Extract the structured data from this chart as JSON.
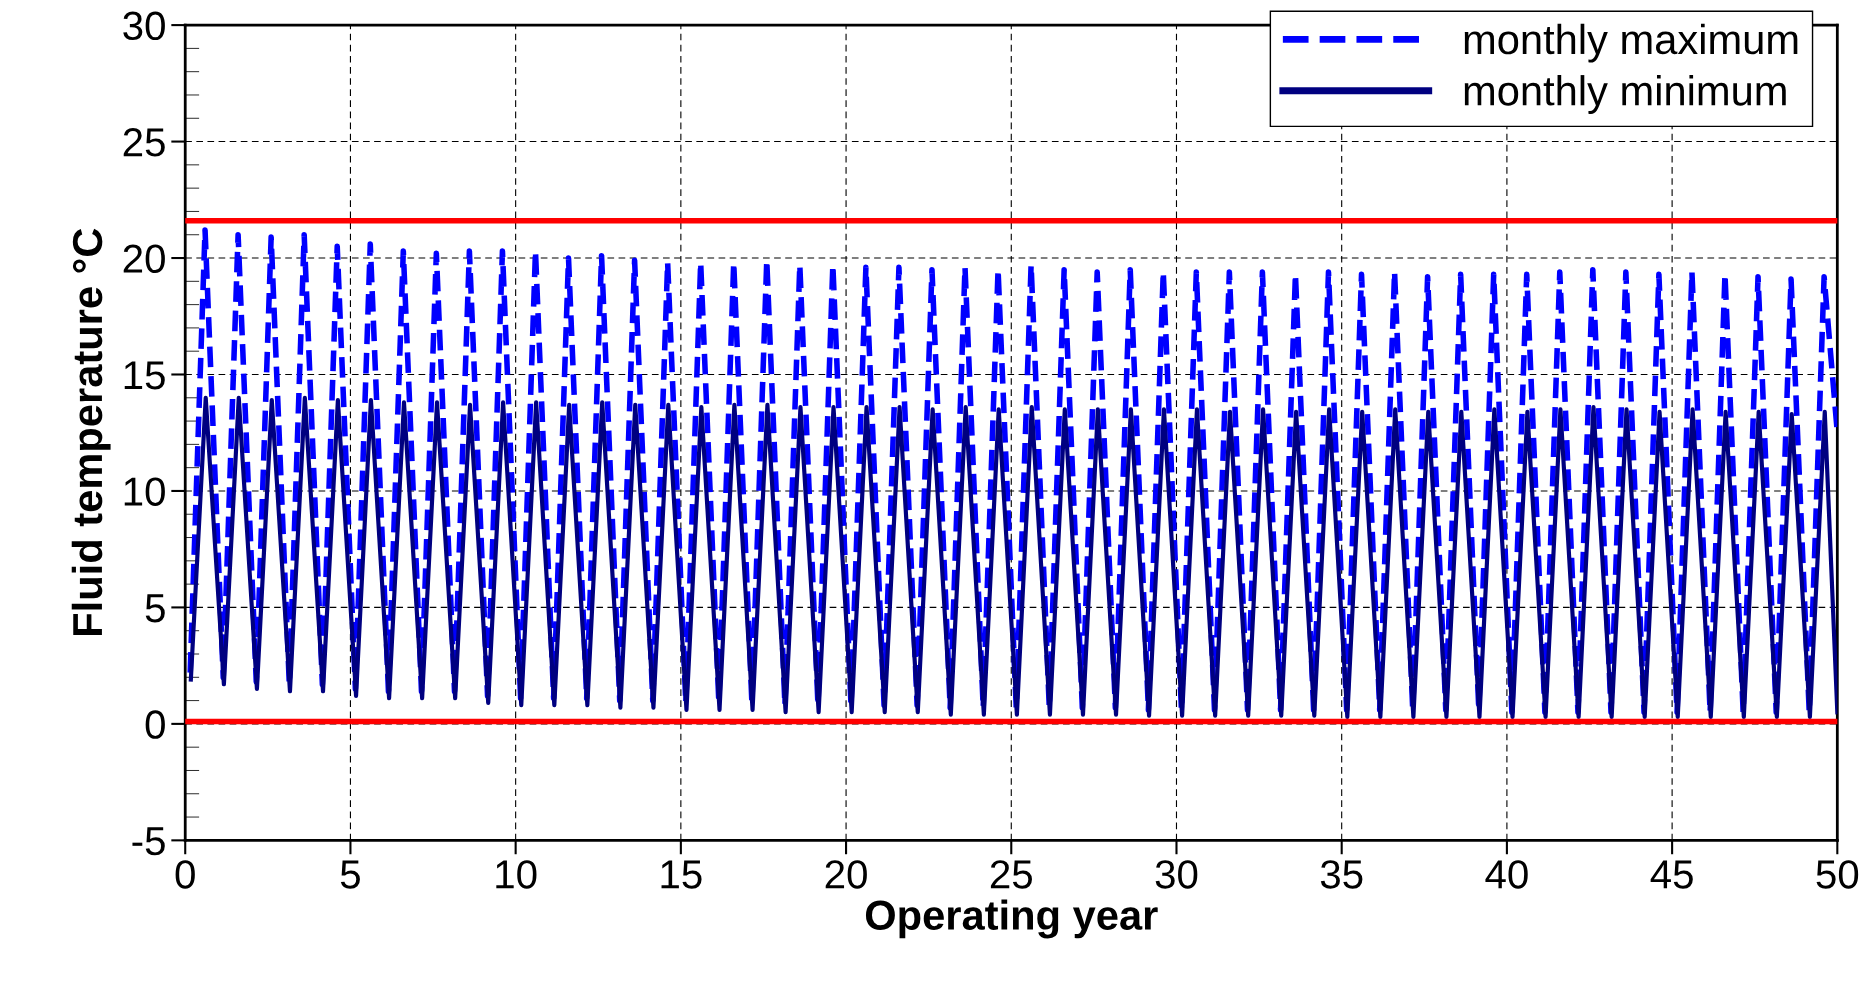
{
  "chart_data": {
    "type": "line",
    "xlabel": "Operating year",
    "ylabel": "Fluid temperature °C",
    "xlim": [
      0,
      50
    ],
    "xticks": [
      0,
      5,
      10,
      15,
      20,
      25,
      30,
      35,
      40,
      45,
      50
    ],
    "ylim": [
      -5,
      30
    ],
    "yticks": [
      -5,
      0,
      5,
      10,
      15,
      20,
      25,
      30
    ],
    "grid": true,
    "legend": "top right",
    "ref_lines": [
      {
        "axis": "y",
        "value": 21.6,
        "color": "#ff0000",
        "line_style": "solid"
      },
      {
        "axis": "y",
        "value": 0.1,
        "color": "#ff0000",
        "line_style": "solid"
      }
    ],
    "series": [
      {
        "name": "monthly maximum",
        "color": "#0000ff",
        "line_style": "dashed",
        "x": [
          0.15,
          0.6,
          1.15,
          1.6,
          2.15,
          2.6,
          3.15,
          3.6,
          4.15,
          4.6,
          5.15,
          5.6,
          6.15,
          6.6,
          7.15,
          7.6,
          8.15,
          8.6,
          9.15,
          9.6,
          10.15,
          10.6,
          11.15,
          11.6,
          12.15,
          12.6,
          13.15,
          13.6,
          14.15,
          14.6,
          15.15,
          15.6,
          16.15,
          16.6,
          17.15,
          17.6,
          18.15,
          18.6,
          19.15,
          19.6,
          20.15,
          20.6,
          21.15,
          21.6,
          22.15,
          22.6,
          23.15,
          23.6,
          24.15,
          24.6,
          25.15,
          25.6,
          26.15,
          26.6,
          27.15,
          27.6,
          28.15,
          28.6,
          29.15,
          29.6,
          30.15,
          30.6,
          31.15,
          31.6,
          32.15,
          32.6,
          33.15,
          33.6,
          34.15,
          34.6,
          35.15,
          35.6,
          36.15,
          36.6,
          37.15,
          37.6,
          38.15,
          38.6,
          39.15,
          39.6,
          40.15,
          40.6,
          41.15,
          41.6,
          42.15,
          42.6,
          43.15,
          43.6,
          44.15,
          44.6,
          45.15,
          45.6,
          46.15,
          46.6,
          47.15,
          47.6,
          48.15,
          48.6,
          49.15,
          49.6,
          50
        ],
        "values": [
          2.2,
          21.2,
          2.0,
          21.0,
          1.8,
          20.9,
          1.7,
          21.0,
          1.7,
          20.5,
          1.5,
          20.6,
          1.4,
          20.3,
          1.4,
          20.2,
          1.4,
          20.3,
          1.2,
          20.3,
          1.1,
          20.3,
          1.1,
          20.0,
          1.1,
          20.1,
          1.0,
          19.9,
          1.0,
          19.8,
          0.9,
          19.8,
          0.9,
          19.8,
          0.9,
          19.9,
          0.8,
          19.7,
          0.8,
          19.7,
          0.8,
          19.6,
          0.8,
          19.6,
          0.8,
          19.5,
          0.7,
          19.6,
          0.7,
          19.5,
          0.7,
          19.7,
          0.7,
          19.5,
          0.7,
          19.4,
          0.7,
          19.5,
          0.6,
          19.4,
          0.6,
          19.4,
          0.6,
          19.4,
          0.6,
          19.4,
          0.6,
          19.3,
          0.6,
          19.4,
          0.6,
          19.3,
          0.6,
          19.4,
          0.6,
          19.2,
          0.6,
          19.3,
          0.6,
          19.3,
          0.5,
          19.3,
          0.5,
          19.4,
          0.5,
          19.5,
          0.5,
          19.4,
          0.5,
          19.3,
          0.5,
          19.4,
          0.5,
          19.3,
          0.5,
          19.2,
          0.5,
          19.1,
          0.5,
          19.2,
          12.5
        ]
      },
      {
        "name": "monthly minimum",
        "color": "#000080",
        "line_style": "solid",
        "x": [
          0.17,
          0.62,
          1.17,
          1.62,
          2.17,
          2.62,
          3.17,
          3.62,
          4.17,
          4.62,
          5.17,
          5.62,
          6.17,
          6.62,
          7.17,
          7.62,
          8.17,
          8.62,
          9.17,
          9.62,
          10.17,
          10.62,
          11.17,
          11.62,
          12.17,
          12.62,
          13.17,
          13.62,
          14.17,
          14.62,
          15.17,
          15.62,
          16.17,
          16.62,
          17.17,
          17.62,
          18.17,
          18.62,
          19.17,
          19.62,
          20.17,
          20.62,
          21.17,
          21.62,
          22.17,
          22.62,
          23.17,
          23.62,
          24.17,
          24.62,
          25.17,
          25.62,
          26.17,
          26.62,
          27.17,
          27.62,
          28.17,
          28.62,
          29.17,
          29.62,
          30.17,
          30.62,
          31.17,
          31.62,
          32.17,
          32.62,
          33.17,
          33.62,
          34.17,
          34.62,
          35.17,
          35.62,
          36.17,
          36.62,
          37.17,
          37.62,
          38.17,
          38.62,
          39.17,
          39.62,
          40.17,
          40.62,
          41.17,
          41.62,
          42.17,
          42.62,
          43.17,
          43.62,
          44.17,
          44.62,
          45.17,
          45.62,
          46.17,
          46.62,
          47.17,
          47.62,
          48.17,
          48.62,
          49.17,
          49.62,
          50
        ],
        "values": [
          1.9,
          14.0,
          1.7,
          14.0,
          1.5,
          13.9,
          1.4,
          14.0,
          1.4,
          13.9,
          1.2,
          13.9,
          1.1,
          13.8,
          1.1,
          13.8,
          1.1,
          13.7,
          0.9,
          13.8,
          0.8,
          13.8,
          0.8,
          13.7,
          0.8,
          13.8,
          0.7,
          13.7,
          0.7,
          13.7,
          0.6,
          13.6,
          0.6,
          13.7,
          0.6,
          13.7,
          0.5,
          13.6,
          0.5,
          13.6,
          0.5,
          13.6,
          0.5,
          13.6,
          0.5,
          13.5,
          0.4,
          13.6,
          0.4,
          13.5,
          0.4,
          13.6,
          0.4,
          13.5,
          0.4,
          13.5,
          0.4,
          13.5,
          0.35,
          13.5,
          0.35,
          13.5,
          0.35,
          13.4,
          0.35,
          13.5,
          0.35,
          13.4,
          0.35,
          13.5,
          0.3,
          13.4,
          0.3,
          13.5,
          0.3,
          13.4,
          0.3,
          13.4,
          0.3,
          13.5,
          0.3,
          13.4,
          0.3,
          13.5,
          0.3,
          13.6,
          0.3,
          13.5,
          0.3,
          13.4,
          0.3,
          13.5,
          0.3,
          13.4,
          0.3,
          13.4,
          0.3,
          13.3,
          0.3,
          13.4,
          0.5
        ]
      }
    ]
  }
}
